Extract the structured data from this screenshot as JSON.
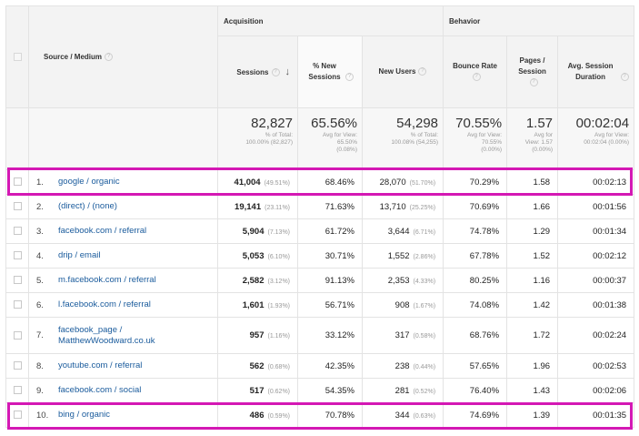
{
  "header": {
    "source_medium": "Source / Medium",
    "acquisition": "Acquisition",
    "behavior": "Behavior",
    "sessions": "Sessions",
    "pct_new_sessions": "% New Sessions",
    "new_users": "New Users",
    "bounce_rate": "Bounce Rate",
    "pages_session": "Pages / Session",
    "avg_session_duration": "Avg. Session Duration"
  },
  "totals": {
    "sessions": "82,827",
    "sessions_sub1": "% of Total:",
    "sessions_sub2": "100.00% (82,827)",
    "pct_new": "65.56%",
    "pct_new_sub1": "Avg for View:",
    "pct_new_sub2": "65.50%",
    "pct_new_sub3": "(0.08%)",
    "new_users": "54,298",
    "new_users_sub1": "% of Total:",
    "new_users_sub2": "100.08% (54,255)",
    "bounce": "70.55%",
    "bounce_sub1": "Avg for View:",
    "bounce_sub2": "70.55%",
    "bounce_sub3": "(0.00%)",
    "pages": "1.57",
    "pages_sub1": "Avg for",
    "pages_sub2": "View: 1.57",
    "pages_sub3": "(0.00%)",
    "duration": "00:02:04",
    "duration_sub1": "Avg for View:",
    "duration_sub2": "00:02:04 (0.00%)"
  },
  "rows": [
    {
      "rank": "1.",
      "source": "google / organic",
      "sessions": "41,004",
      "sessions_pct": "(49.51%)",
      "pct_new": "68.46%",
      "new_users": "28,070",
      "new_users_pct": "(51.70%)",
      "bounce": "70.29%",
      "pages": "1.58",
      "duration": "00:02:13"
    },
    {
      "rank": "2.",
      "source": "(direct) / (none)",
      "sessions": "19,141",
      "sessions_pct": "(23.11%)",
      "pct_new": "71.63%",
      "new_users": "13,710",
      "new_users_pct": "(25.25%)",
      "bounce": "70.69%",
      "pages": "1.66",
      "duration": "00:01:56"
    },
    {
      "rank": "3.",
      "source": "facebook.com / referral",
      "sessions": "5,904",
      "sessions_pct": "(7.13%)",
      "pct_new": "61.72%",
      "new_users": "3,644",
      "new_users_pct": "(6.71%)",
      "bounce": "74.78%",
      "pages": "1.29",
      "duration": "00:01:34"
    },
    {
      "rank": "4.",
      "source": "drip / email",
      "sessions": "5,053",
      "sessions_pct": "(6.10%)",
      "pct_new": "30.71%",
      "new_users": "1,552",
      "new_users_pct": "(2.86%)",
      "bounce": "67.78%",
      "pages": "1.52",
      "duration": "00:02:12"
    },
    {
      "rank": "5.",
      "source": "m.facebook.com / referral",
      "sessions": "2,582",
      "sessions_pct": "(3.12%)",
      "pct_new": "91.13%",
      "new_users": "2,353",
      "new_users_pct": "(4.33%)",
      "bounce": "80.25%",
      "pages": "1.16",
      "duration": "00:00:37"
    },
    {
      "rank": "6.",
      "source": "l.facebook.com / referral",
      "sessions": "1,601",
      "sessions_pct": "(1.93%)",
      "pct_new": "56.71%",
      "new_users": "908",
      "new_users_pct": "(1.67%)",
      "bounce": "74.08%",
      "pages": "1.42",
      "duration": "00:01:38"
    },
    {
      "rank": "7.",
      "source": "facebook_page / MatthewWoodward.co.uk",
      "sessions": "957",
      "sessions_pct": "(1.16%)",
      "pct_new": "33.12%",
      "new_users": "317",
      "new_users_pct": "(0.58%)",
      "bounce": "68.76%",
      "pages": "1.72",
      "duration": "00:02:24"
    },
    {
      "rank": "8.",
      "source": "youtube.com / referral",
      "sessions": "562",
      "sessions_pct": "(0.68%)",
      "pct_new": "42.35%",
      "new_users": "238",
      "new_users_pct": "(0.44%)",
      "bounce": "57.65%",
      "pages": "1.96",
      "duration": "00:02:53"
    },
    {
      "rank": "9.",
      "source": "facebook.com / social",
      "sessions": "517",
      "sessions_pct": "(0.62%)",
      "pct_new": "54.35%",
      "new_users": "281",
      "new_users_pct": "(0.52%)",
      "bounce": "76.40%",
      "pages": "1.43",
      "duration": "00:02:06"
    },
    {
      "rank": "10.",
      "source": "bing / organic",
      "sessions": "486",
      "sessions_pct": "(0.59%)",
      "pct_new": "70.78%",
      "new_users": "344",
      "new_users_pct": "(0.63%)",
      "bounce": "74.69%",
      "pages": "1.39",
      "duration": "00:01:35"
    }
  ],
  "colors": {
    "highlight": "#d418b4",
    "link": "#1a5b9c"
  }
}
